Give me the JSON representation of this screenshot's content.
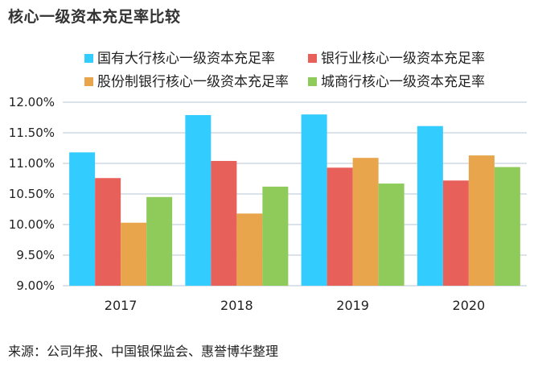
{
  "chart_data": {
    "type": "bar",
    "title": "核心一级资本充足率比较",
    "categories": [
      "2017",
      "2018",
      "2019",
      "2020"
    ],
    "series": [
      {
        "name": "国有大行核心一级资本充足率",
        "color": "#33ccff",
        "values": [
          11.18,
          11.79,
          11.8,
          11.61
        ]
      },
      {
        "name": "银行业核心一级资本充足率",
        "color": "#e8605a",
        "values": [
          10.76,
          11.04,
          10.93,
          10.72
        ]
      },
      {
        "name": "股份制银行核心一级资本充足率",
        "color": "#e8a54c",
        "values": [
          10.03,
          10.18,
          11.09,
          11.13
        ]
      },
      {
        "name": "城商行核心一级资本充足率",
        "color": "#8ecb5a",
        "values": [
          10.45,
          10.62,
          10.67,
          10.94
        ]
      }
    ],
    "ylim": [
      9.0,
      12.0
    ],
    "yticks": [
      "9.00%",
      "9.50%",
      "10.00%",
      "10.50%",
      "11.00%",
      "11.50%",
      "12.00%"
    ],
    "ytick_values": [
      9.0,
      9.5,
      10.0,
      10.5,
      11.0,
      11.5,
      12.0
    ],
    "legend_position": "top",
    "grid": true,
    "gridline_color": "#cfd8e3"
  },
  "source": "来源：公司年报、中国银保监会、惠誉博华整理"
}
